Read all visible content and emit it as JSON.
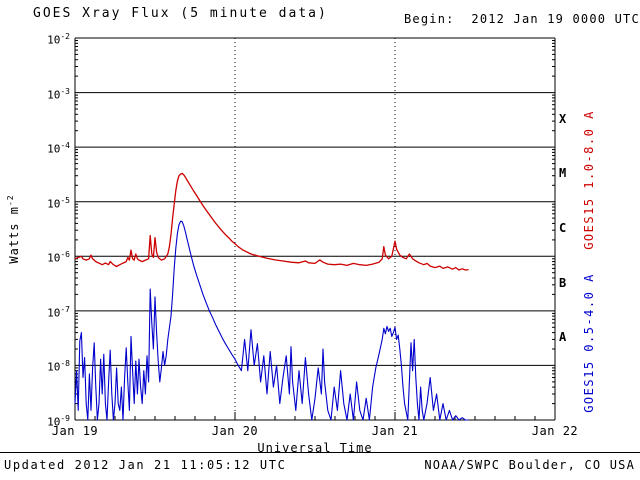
{
  "title": "GOES Xray Flux (5 minute data)",
  "begin_label": "Begin:  2012 Jan 19 0000 UTC",
  "axis": {
    "y_title_base": "Watts m",
    "y_title_exp": "-2"
  },
  "footer": {
    "updated": "Updated 2012 Jan 21 11:05:12 UTC",
    "credit": "NOAA/SWPC Boulder, CO USA"
  },
  "chart_data": {
    "type": "line",
    "title": "GOES Xray Flux (5 minute data)",
    "xlabel": "Universal Time",
    "ylabel": "Watts m^-2",
    "x_ticks": [
      "Jan 19",
      "Jan 20",
      "Jan 21",
      "Jan 22"
    ],
    "xlim_days": [
      0,
      3
    ],
    "ylim": [
      1e-09,
      0.01
    ],
    "y_exponents": [
      -2,
      -3,
      -4,
      -5,
      -6,
      -7,
      -8,
      -9
    ],
    "grid": {
      "horizontal": "solid-each-decade",
      "vertical": "dotted-each-day"
    },
    "legend_position": "right-rotated",
    "flare_classes": [
      {
        "label": "X",
        "log_center": -3.5
      },
      {
        "label": "M",
        "log_center": -4.5
      },
      {
        "label": "C",
        "log_center": -5.5
      },
      {
        "label": "B",
        "log_center": -6.5
      },
      {
        "label": "A",
        "log_center": -7.5
      }
    ],
    "series": [
      {
        "name": "GOES15 1.0-8.0 A",
        "color": "#cc0000",
        "width": 1.3,
        "points": [
          [
            0.0,
            9e-07
          ],
          [
            0.02,
            9.5e-07
          ],
          [
            0.04,
            1e-06
          ],
          [
            0.05,
            9e-07
          ],
          [
            0.07,
            8.5e-07
          ],
          [
            0.09,
            9e-07
          ],
          [
            0.1,
            1.05e-06
          ],
          [
            0.11,
            9e-07
          ],
          [
            0.13,
            8e-07
          ],
          [
            0.15,
            7.5e-07
          ],
          [
            0.17,
            7e-07
          ],
          [
            0.19,
            7.5e-07
          ],
          [
            0.21,
            7e-07
          ],
          [
            0.22,
            8e-07
          ],
          [
            0.24,
            7e-07
          ],
          [
            0.26,
            6.5e-07
          ],
          [
            0.28,
            7e-07
          ],
          [
            0.3,
            7.5e-07
          ],
          [
            0.32,
            8e-07
          ],
          [
            0.33,
            9.5e-07
          ],
          [
            0.34,
            8.5e-07
          ],
          [
            0.35,
            1.3e-06
          ],
          [
            0.36,
            9e-07
          ],
          [
            0.37,
            8.5e-07
          ],
          [
            0.38,
            1.1e-06
          ],
          [
            0.39,
            9e-07
          ],
          [
            0.4,
            8.5e-07
          ],
          [
            0.42,
            8e-07
          ],
          [
            0.44,
            8.5e-07
          ],
          [
            0.46,
            9e-07
          ],
          [
            0.47,
            2.4e-06
          ],
          [
            0.48,
            1.1e-06
          ],
          [
            0.49,
            9.5e-07
          ],
          [
            0.5,
            2.2e-06
          ],
          [
            0.51,
            1.2e-06
          ],
          [
            0.52,
            9.5e-07
          ],
          [
            0.54,
            8.5e-07
          ],
          [
            0.56,
            9e-07
          ],
          [
            0.58,
            1.1e-06
          ],
          [
            0.59,
            1.5e-06
          ],
          [
            0.6,
            2.5e-06
          ],
          [
            0.61,
            5e-06
          ],
          [
            0.62,
            9e-06
          ],
          [
            0.63,
            1.6e-05
          ],
          [
            0.64,
            2.4e-05
          ],
          [
            0.65,
            3e-05
          ],
          [
            0.66,
            3.2e-05
          ],
          [
            0.67,
            3.3e-05
          ],
          [
            0.68,
            3.1e-05
          ],
          [
            0.69,
            2.8e-05
          ],
          [
            0.7,
            2.5e-05
          ],
          [
            0.72,
            2e-05
          ],
          [
            0.74,
            1.6e-05
          ],
          [
            0.76,
            1.3e-05
          ],
          [
            0.78,
            1.05e-05
          ],
          [
            0.8,
            8.5e-06
          ],
          [
            0.82,
            7e-06
          ],
          [
            0.84,
            5.8e-06
          ],
          [
            0.86,
            4.8e-06
          ],
          [
            0.88,
            4e-06
          ],
          [
            0.9,
            3.4e-06
          ],
          [
            0.92,
            2.9e-06
          ],
          [
            0.94,
            2.5e-06
          ],
          [
            0.96,
            2.2e-06
          ],
          [
            0.98,
            1.9e-06
          ],
          [
            1.0,
            1.7e-06
          ],
          [
            1.02,
            1.5e-06
          ],
          [
            1.05,
            1.3e-06
          ],
          [
            1.1,
            1.1e-06
          ],
          [
            1.15,
            1e-06
          ],
          [
            1.2,
            9.2e-07
          ],
          [
            1.25,
            8.6e-07
          ],
          [
            1.3,
            8.2e-07
          ],
          [
            1.35,
            7.8e-07
          ],
          [
            1.4,
            7.6e-07
          ],
          [
            1.44,
            8.2e-07
          ],
          [
            1.46,
            7.6e-07
          ],
          [
            1.5,
            7.4e-07
          ],
          [
            1.53,
            8.6e-07
          ],
          [
            1.55,
            7.8e-07
          ],
          [
            1.58,
            7.2e-07
          ],
          [
            1.62,
            7e-07
          ],
          [
            1.66,
            7.2e-07
          ],
          [
            1.7,
            6.8e-07
          ],
          [
            1.74,
            7.4e-07
          ],
          [
            1.78,
            7e-07
          ],
          [
            1.82,
            6.8e-07
          ],
          [
            1.86,
            7.2e-07
          ],
          [
            1.9,
            7.8e-07
          ],
          [
            1.92,
            9e-07
          ],
          [
            1.93,
            1.5e-06
          ],
          [
            1.94,
            1.05e-06
          ],
          [
            1.96,
            9e-07
          ],
          [
            1.98,
            1e-06
          ],
          [
            2.0,
            1.9e-06
          ],
          [
            2.01,
            1.35e-06
          ],
          [
            2.03,
            1.05e-06
          ],
          [
            2.05,
            9.5e-07
          ],
          [
            2.07,
            9e-07
          ],
          [
            2.09,
            1.1e-06
          ],
          [
            2.11,
            9e-07
          ],
          [
            2.13,
            8.2e-07
          ],
          [
            2.15,
            7.6e-07
          ],
          [
            2.18,
            7e-07
          ],
          [
            2.2,
            7.4e-07
          ],
          [
            2.22,
            6.6e-07
          ],
          [
            2.25,
            6.2e-07
          ],
          [
            2.28,
            6.6e-07
          ],
          [
            2.3,
            6e-07
          ],
          [
            2.33,
            6.4e-07
          ],
          [
            2.36,
            5.8e-07
          ],
          [
            2.38,
            6.2e-07
          ],
          [
            2.4,
            5.6e-07
          ],
          [
            2.42,
            5.9e-07
          ],
          [
            2.44,
            5.6e-07
          ],
          [
            2.46,
            5.7e-07
          ]
        ]
      },
      {
        "name": "GOES15 0.5-4.0 A",
        "color": "#0000cc",
        "width": 1.1,
        "points": [
          [
            0.0,
            2e-09
          ],
          [
            0.01,
            8e-09
          ],
          [
            0.02,
            1.5e-09
          ],
          [
            0.03,
            2.8e-08
          ],
          [
            0.04,
            4e-08
          ],
          [
            0.05,
            6e-09
          ],
          [
            0.06,
            1.4e-08
          ],
          [
            0.07,
            2e-09
          ],
          [
            0.08,
            1e-09
          ],
          [
            0.09,
            7e-09
          ],
          [
            0.1,
            1.5e-09
          ],
          [
            0.11,
            9e-09
          ],
          [
            0.12,
            2.6e-08
          ],
          [
            0.13,
            4e-09
          ],
          [
            0.14,
            1e-09
          ],
          [
            0.15,
            2e-09
          ],
          [
            0.16,
            1.3e-08
          ],
          [
            0.17,
            3e-09
          ],
          [
            0.18,
            1.6e-08
          ],
          [
            0.19,
            2e-09
          ],
          [
            0.2,
            1e-09
          ],
          [
            0.21,
            5e-09
          ],
          [
            0.22,
            1.9e-08
          ],
          [
            0.23,
            3e-09
          ],
          [
            0.24,
            1e-09
          ],
          [
            0.25,
            2e-09
          ],
          [
            0.26,
            9e-09
          ],
          [
            0.27,
            2e-09
          ],
          [
            0.28,
            1.5e-09
          ],
          [
            0.29,
            4e-09
          ],
          [
            0.3,
            1e-09
          ],
          [
            0.31,
            6e-09
          ],
          [
            0.32,
            2.1e-08
          ],
          [
            0.33,
            5e-09
          ],
          [
            0.34,
            1.5e-09
          ],
          [
            0.35,
            3.4e-08
          ],
          [
            0.36,
            8e-09
          ],
          [
            0.37,
            2e-09
          ],
          [
            0.38,
            1.2e-08
          ],
          [
            0.39,
            3e-09
          ],
          [
            0.4,
            1.3e-08
          ],
          [
            0.41,
            4e-09
          ],
          [
            0.42,
            2e-09
          ],
          [
            0.43,
            8e-09
          ],
          [
            0.44,
            3e-09
          ],
          [
            0.45,
            1.5e-08
          ],
          [
            0.46,
            5e-09
          ],
          [
            0.47,
            2.5e-07
          ],
          [
            0.48,
            6e-08
          ],
          [
            0.49,
            2e-08
          ],
          [
            0.5,
            1.8e-07
          ],
          [
            0.51,
            4e-08
          ],
          [
            0.52,
            1.2e-08
          ],
          [
            0.53,
            5e-09
          ],
          [
            0.54,
            9e-09
          ],
          [
            0.55,
            1.8e-08
          ],
          [
            0.56,
            1e-08
          ],
          [
            0.57,
            1.5e-08
          ],
          [
            0.58,
            3e-08
          ],
          [
            0.6,
            8e-08
          ],
          [
            0.61,
            2e-07
          ],
          [
            0.62,
            6e-07
          ],
          [
            0.63,
            1.4e-06
          ],
          [
            0.64,
            2.6e-06
          ],
          [
            0.65,
            3.8e-06
          ],
          [
            0.66,
            4.4e-06
          ],
          [
            0.67,
            4.3e-06
          ],
          [
            0.68,
            3.6e-06
          ],
          [
            0.69,
            2.8e-06
          ],
          [
            0.7,
            2.1e-06
          ],
          [
            0.72,
            1.2e-06
          ],
          [
            0.74,
            7e-07
          ],
          [
            0.76,
            4.5e-07
          ],
          [
            0.78,
            3e-07
          ],
          [
            0.8,
            2e-07
          ],
          [
            0.82,
            1.4e-07
          ],
          [
            0.84,
            1e-07
          ],
          [
            0.86,
            7.5e-08
          ],
          [
            0.88,
            5.5e-08
          ],
          [
            0.9,
            4.2e-08
          ],
          [
            0.92,
            3.2e-08
          ],
          [
            0.94,
            2.5e-08
          ],
          [
            0.96,
            2e-08
          ],
          [
            0.98,
            1.6e-08
          ],
          [
            1.0,
            1.3e-08
          ],
          [
            1.02,
            1e-08
          ],
          [
            1.04,
            8e-09
          ],
          [
            1.06,
            3e-08
          ],
          [
            1.08,
            8e-09
          ],
          [
            1.1,
            4.5e-08
          ],
          [
            1.12,
            1e-08
          ],
          [
            1.14,
            2.5e-08
          ],
          [
            1.16,
            5e-09
          ],
          [
            1.18,
            1.5e-08
          ],
          [
            1.2,
            3e-09
          ],
          [
            1.22,
            1.8e-08
          ],
          [
            1.24,
            4e-09
          ],
          [
            1.26,
            1e-08
          ],
          [
            1.28,
            2e-09
          ],
          [
            1.3,
            6e-09
          ],
          [
            1.32,
            1.5e-08
          ],
          [
            1.34,
            3e-09
          ],
          [
            1.35,
            2.2e-08
          ],
          [
            1.36,
            5e-09
          ],
          [
            1.38,
            1.5e-09
          ],
          [
            1.4,
            8e-09
          ],
          [
            1.42,
            2e-09
          ],
          [
            1.44,
            1.4e-08
          ],
          [
            1.46,
            3e-09
          ],
          [
            1.48,
            1e-09
          ],
          [
            1.5,
            2.5e-09
          ],
          [
            1.52,
            9e-09
          ],
          [
            1.54,
            3e-09
          ],
          [
            1.55,
            2e-08
          ],
          [
            1.56,
            5e-09
          ],
          [
            1.58,
            1.5e-09
          ],
          [
            1.6,
            1e-09
          ],
          [
            1.62,
            4e-09
          ],
          [
            1.64,
            1.5e-09
          ],
          [
            1.66,
            8e-09
          ],
          [
            1.68,
            2e-09
          ],
          [
            1.7,
            1e-09
          ],
          [
            1.72,
            3e-09
          ],
          [
            1.74,
            1e-09
          ],
          [
            1.76,
            5e-09
          ],
          [
            1.78,
            1.5e-09
          ],
          [
            1.8,
            1e-09
          ],
          [
            1.82,
            2.5e-09
          ],
          [
            1.84,
            1e-09
          ],
          [
            1.86,
            4e-09
          ],
          [
            1.88,
            9e-09
          ],
          [
            1.9,
            1.6e-08
          ],
          [
            1.92,
            3e-08
          ],
          [
            1.93,
            4.8e-08
          ],
          [
            1.94,
            3.8e-08
          ],
          [
            1.95,
            5.2e-08
          ],
          [
            1.96,
            4.2e-08
          ],
          [
            1.97,
            4.8e-08
          ],
          [
            1.98,
            3.4e-08
          ],
          [
            1.99,
            4e-08
          ],
          [
            2.0,
            5e-08
          ],
          [
            2.01,
            3e-08
          ],
          [
            2.02,
            3.6e-08
          ],
          [
            2.03,
            2e-08
          ],
          [
            2.04,
            1e-08
          ],
          [
            2.05,
            4e-09
          ],
          [
            2.06,
            2e-09
          ],
          [
            2.08,
            1e-09
          ],
          [
            2.1,
            2.6e-08
          ],
          [
            2.11,
            8e-09
          ],
          [
            2.12,
            3e-08
          ],
          [
            2.13,
            6e-09
          ],
          [
            2.14,
            2e-09
          ],
          [
            2.15,
            1e-09
          ],
          [
            2.16,
            4e-09
          ],
          [
            2.17,
            1.5e-09
          ],
          [
            2.18,
            1e-09
          ],
          [
            2.2,
            2e-09
          ],
          [
            2.22,
            6e-09
          ],
          [
            2.24,
            1.5e-09
          ],
          [
            2.26,
            3e-09
          ],
          [
            2.28,
            1e-09
          ],
          [
            2.3,
            2e-09
          ],
          [
            2.32,
            1e-09
          ],
          [
            2.34,
            1.5e-09
          ],
          [
            2.36,
            1e-09
          ],
          [
            2.38,
            1.2e-09
          ],
          [
            2.4,
            1e-09
          ],
          [
            2.42,
            1.1e-09
          ],
          [
            2.44,
            1e-09
          ],
          [
            2.46,
            1e-09
          ]
        ]
      }
    ]
  }
}
